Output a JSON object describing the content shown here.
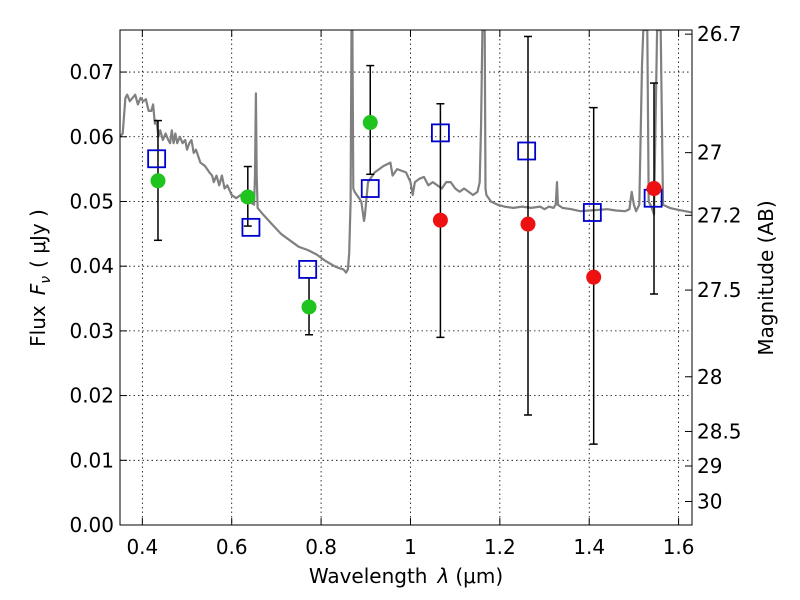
{
  "chart_data": {
    "type": "scatter",
    "xlabel_text": "Wavelength",
    "xlabel_symbol": "λ",
    "xlabel_unit": "(μm)",
    "ylabel_text": "Flux",
    "ylabel_symbol": "F",
    "ylabel_subscript": "ν",
    "ylabel_unit": "( μJy )",
    "y2label": "Magnitude (AB)",
    "xlim": [
      0.35,
      1.63
    ],
    "ylim": [
      0.0,
      0.0765
    ],
    "x_ticks": [
      0.4,
      0.6,
      0.8,
      1.0,
      1.2,
      1.4,
      1.6
    ],
    "x_tick_labels": [
      "0.4",
      "0.6",
      "0.8",
      "1",
      "1.2",
      "1.4",
      "1.6"
    ],
    "y_ticks": [
      0.0,
      0.01,
      0.02,
      0.03,
      0.04,
      0.05,
      0.06,
      0.07
    ],
    "y_tick_labels": [
      "0.00",
      "0.01",
      "0.02",
      "0.03",
      "0.04",
      "0.05",
      "0.06",
      "0.07"
    ],
    "mag_ticks": [
      {
        "mag": 26.7,
        "label": "26.7"
      },
      {
        "mag": 27.0,
        "label": "27"
      },
      {
        "mag": 27.2,
        "label": "27.2"
      },
      {
        "mag": 27.5,
        "label": "27.5"
      },
      {
        "mag": 28.0,
        "label": "28"
      },
      {
        "mag": 28.5,
        "label": "28.5"
      },
      {
        "mag": 29.0,
        "label": "29"
      },
      {
        "mag": 30.0,
        "label": "30"
      }
    ],
    "grid": true,
    "colors": {
      "sed_line": "#808080",
      "green_points": "#1fc41f",
      "red_points": "#ee1111",
      "model_squares": "#0000cc",
      "errorbars": "#000000"
    },
    "green_points": [
      {
        "x": 0.435,
        "y": 0.0532,
        "ylo": 0.044,
        "yhi": 0.0625
      },
      {
        "x": 0.636,
        "y": 0.0507,
        "ylo": 0.0462,
        "yhi": 0.0554
      },
      {
        "x": 0.773,
        "y": 0.0337,
        "ylo": 0.0294,
        "yhi": 0.0382
      },
      {
        "x": 0.91,
        "y": 0.0622,
        "ylo": 0.0542,
        "yhi": 0.071
      }
    ],
    "red_points": [
      {
        "x": 1.067,
        "y": 0.0471,
        "ylo": 0.029,
        "yhi": 0.0651
      },
      {
        "x": 1.263,
        "y": 0.0465,
        "ylo": 0.017,
        "yhi": 0.0755
      },
      {
        "x": 1.41,
        "y": 0.0383,
        "ylo": 0.0125,
        "yhi": 0.0645
      },
      {
        "x": 1.545,
        "y": 0.052,
        "ylo": 0.0357,
        "yhi": 0.0683
      }
    ],
    "model_squares": [
      {
        "x": 0.432,
        "y": 0.0566
      },
      {
        "x": 0.643,
        "y": 0.046
      },
      {
        "x": 0.77,
        "y": 0.0395
      },
      {
        "x": 0.91,
        "y": 0.052
      },
      {
        "x": 1.067,
        "y": 0.0606
      },
      {
        "x": 1.26,
        "y": 0.0578
      },
      {
        "x": 1.407,
        "y": 0.0483
      },
      {
        "x": 1.543,
        "y": 0.0505
      }
    ],
    "sed_curve": [
      [
        0.35,
        0.06
      ],
      [
        0.356,
        0.0605
      ],
      [
        0.362,
        0.066
      ],
      [
        0.366,
        0.0665
      ],
      [
        0.372,
        0.0655
      ],
      [
        0.378,
        0.066
      ],
      [
        0.384,
        0.0665
      ],
      [
        0.39,
        0.065
      ],
      [
        0.396,
        0.066
      ],
      [
        0.402,
        0.0655
      ],
      [
        0.408,
        0.0658
      ],
      [
        0.414,
        0.064
      ],
      [
        0.42,
        0.064
      ],
      [
        0.424,
        0.065
      ],
      [
        0.428,
        0.062
      ],
      [
        0.432,
        0.0625
      ],
      [
        0.436,
        0.06
      ],
      [
        0.44,
        0.061
      ],
      [
        0.446,
        0.0595
      ],
      [
        0.452,
        0.0605
      ],
      [
        0.458,
        0.0595
      ],
      [
        0.462,
        0.059
      ],
      [
        0.466,
        0.061
      ],
      [
        0.47,
        0.059
      ],
      [
        0.474,
        0.0605
      ],
      [
        0.478,
        0.059
      ],
      [
        0.484,
        0.06
      ],
      [
        0.49,
        0.059
      ],
      [
        0.496,
        0.0595
      ],
      [
        0.5,
        0.058
      ],
      [
        0.505,
        0.059
      ],
      [
        0.51,
        0.0595
      ],
      [
        0.515,
        0.0575
      ],
      [
        0.52,
        0.058
      ],
      [
        0.53,
        0.056
      ],
      [
        0.54,
        0.0555
      ],
      [
        0.55,
        0.0545
      ],
      [
        0.556,
        0.054
      ],
      [
        0.56,
        0.053
      ],
      [
        0.566,
        0.054
      ],
      [
        0.572,
        0.0525
      ],
      [
        0.578,
        0.054
      ],
      [
        0.584,
        0.052
      ],
      [
        0.59,
        0.0525
      ],
      [
        0.6,
        0.051
      ],
      [
        0.61,
        0.0505
      ],
      [
        0.62,
        0.051
      ],
      [
        0.63,
        0.0505
      ],
      [
        0.64,
        0.05
      ],
      [
        0.65,
        0.0495
      ],
      [
        0.652,
        0.054
      ],
      [
        0.654,
        0.0667
      ],
      [
        0.656,
        0.054
      ],
      [
        0.658,
        0.049
      ],
      [
        0.67,
        0.048
      ],
      [
        0.69,
        0.0465
      ],
      [
        0.71,
        0.045
      ],
      [
        0.73,
        0.044
      ],
      [
        0.75,
        0.043
      ],
      [
        0.77,
        0.0425
      ],
      [
        0.79,
        0.0418
      ],
      [
        0.81,
        0.0408
      ],
      [
        0.83,
        0.04
      ],
      [
        0.84,
        0.0397
      ],
      [
        0.85,
        0.0395
      ],
      [
        0.856,
        0.039
      ],
      [
        0.86,
        0.0395
      ],
      [
        0.863,
        0.042
      ],
      [
        0.866,
        0.05
      ],
      [
        0.868,
        0.0765
      ],
      [
        0.87,
        0.0765
      ],
      [
        0.872,
        0.052
      ],
      [
        0.875,
        0.0515
      ],
      [
        0.88,
        0.051
      ],
      [
        0.885,
        0.0505
      ],
      [
        0.89,
        0.05
      ],
      [
        0.894,
        0.048
      ],
      [
        0.896,
        0.047
      ],
      [
        0.898,
        0.0478
      ],
      [
        0.905,
        0.053
      ],
      [
        0.92,
        0.0545
      ],
      [
        0.94,
        0.0555
      ],
      [
        0.955,
        0.056
      ],
      [
        0.96,
        0.054
      ],
      [
        0.97,
        0.055
      ],
      [
        0.99,
        0.0545
      ],
      [
        1.0,
        0.053
      ],
      [
        1.005,
        0.051
      ],
      [
        1.01,
        0.053
      ],
      [
        1.02,
        0.0535
      ],
      [
        1.03,
        0.0538
      ],
      [
        1.04,
        0.0525
      ],
      [
        1.05,
        0.053
      ],
      [
        1.06,
        0.0525
      ],
      [
        1.07,
        0.052
      ],
      [
        1.08,
        0.053
      ],
      [
        1.09,
        0.053
      ],
      [
        1.1,
        0.052
      ],
      [
        1.11,
        0.0515
      ],
      [
        1.12,
        0.052
      ],
      [
        1.13,
        0.0515
      ],
      [
        1.14,
        0.051
      ],
      [
        1.15,
        0.0515
      ],
      [
        1.155,
        0.053
      ],
      [
        1.158,
        0.062
      ],
      [
        1.161,
        0.0765
      ],
      [
        1.166,
        0.0765
      ],
      [
        1.168,
        0.052
      ],
      [
        1.17,
        0.051
      ],
      [
        1.18,
        0.05
      ],
      [
        1.195,
        0.0495
      ],
      [
        1.21,
        0.0492
      ],
      [
        1.23,
        0.049
      ],
      [
        1.25,
        0.0492
      ],
      [
        1.27,
        0.049
      ],
      [
        1.29,
        0.0492
      ],
      [
        1.3,
        0.0488
      ],
      [
        1.31,
        0.0492
      ],
      [
        1.32,
        0.049
      ],
      [
        1.325,
        0.0495
      ],
      [
        1.328,
        0.053
      ],
      [
        1.33,
        0.0495
      ],
      [
        1.34,
        0.049
      ],
      [
        1.36,
        0.0488
      ],
      [
        1.38,
        0.0485
      ],
      [
        1.4,
        0.0486
      ],
      [
        1.42,
        0.0487
      ],
      [
        1.44,
        0.0488
      ],
      [
        1.46,
        0.0486
      ],
      [
        1.48,
        0.0485
      ],
      [
        1.49,
        0.0488
      ],
      [
        1.495,
        0.0515
      ],
      [
        1.5,
        0.0495
      ],
      [
        1.505,
        0.0485
      ],
      [
        1.512,
        0.0495
      ],
      [
        1.518,
        0.071
      ],
      [
        1.521,
        0.0765
      ],
      [
        1.53,
        0.0765
      ],
      [
        1.533,
        0.05
      ],
      [
        1.54,
        0.049
      ],
      [
        1.545,
        0.048
      ],
      [
        1.552,
        0.0765
      ],
      [
        1.56,
        0.0765
      ],
      [
        1.565,
        0.0495
      ],
      [
        1.58,
        0.049
      ],
      [
        1.6,
        0.0487
      ],
      [
        1.615,
        0.0485
      ],
      [
        1.63,
        0.0483
      ]
    ]
  }
}
